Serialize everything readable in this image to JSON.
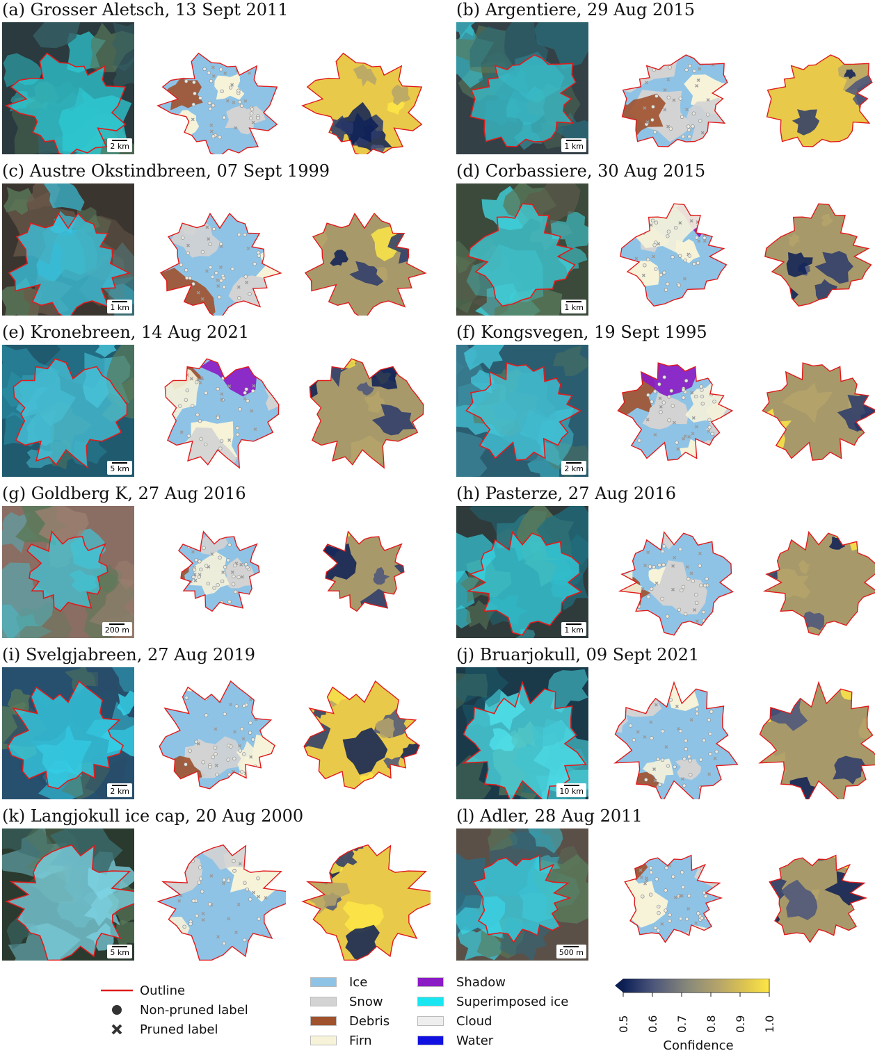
{
  "panels": [
    {
      "title": "(a) Grosser Aletsch, 13 Sept 2011",
      "scale": "2 km"
    },
    {
      "title": "(b) Argentiere, 29 Aug 2015",
      "scale": "1 km"
    },
    {
      "title": "(c) Austre Okstindbreen, 07 Sept 1999",
      "scale": "1 km"
    },
    {
      "title": "(d) Corbassiere, 30 Aug 2015",
      "scale": "1 km"
    },
    {
      "title": "(e) Kronebreen, 14 Aug 2021",
      "scale": "5 km"
    },
    {
      "title": "(f) Kongsvegen, 19 Sept 1995",
      "scale": "2 km"
    },
    {
      "title": "(g) Goldberg K, 27 Aug 2016",
      "scale": "200 m"
    },
    {
      "title": "(h) Pasterze, 27 Aug 2016",
      "scale": "1 km"
    },
    {
      "title": "(i) Svelgjabreen, 27 Aug 2019",
      "scale": "2 km"
    },
    {
      "title": "(j) Bruarjokull, 09 Sept 2021",
      "scale": "10 km"
    },
    {
      "title": "(k) Langjokull ice cap, 20 Aug 2000",
      "scale": "5 km"
    },
    {
      "title": "(l) Adler, 28 Aug 2011",
      "scale": "500 m"
    }
  ],
  "legend": {
    "markers": [
      {
        "label": "Outline",
        "icon": "red-line-icon"
      },
      {
        "label": "Non-pruned label",
        "icon": "circle-icon"
      },
      {
        "label": "Pruned label",
        "icon": "cross-icon"
      }
    ],
    "classes": [
      {
        "label": "Ice",
        "color": "#8ec3e6"
      },
      {
        "label": "Snow",
        "color": "#d3d3d3"
      },
      {
        "label": "Debris",
        "color": "#a0522d"
      },
      {
        "label": "Firn",
        "color": "#f6f3d9"
      },
      {
        "label": "Shadow",
        "color": "#8b1bc4"
      },
      {
        "label": "Superimposed ice",
        "color": "#19e6f0"
      },
      {
        "label": "Cloud",
        "color": "#eeeeee"
      },
      {
        "label": "Water",
        "color": "#1010e0"
      }
    ],
    "colorbar": {
      "label": "Confidence",
      "ticks": [
        "0.5",
        "0.6",
        "0.7",
        "0.8",
        "0.9",
        "1.0"
      ],
      "colormap": [
        "#0c1f55",
        "#4b557a",
        "#8a8a7a",
        "#b5a46a",
        "#e0c74e",
        "#fde647"
      ]
    }
  }
}
